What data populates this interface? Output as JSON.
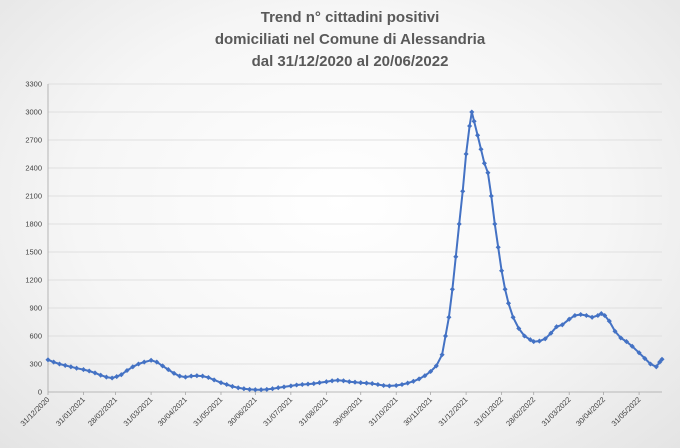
{
  "chart_data": {
    "type": "line",
    "title": [
      "Trend n° cittadini positivi",
      "domiciliati nel Comune di Alessandria",
      "dal 31/12/2020 al 20/06/2022"
    ],
    "xlabel": "",
    "ylabel": "",
    "ylim": [
      0,
      3300
    ],
    "yticks": [
      0,
      300,
      600,
      900,
      1200,
      1500,
      1800,
      2100,
      2400,
      2700,
      3000,
      3300
    ],
    "x_range": [
      "2020-12-31",
      "2022-06-20"
    ],
    "xtick_labels": [
      {
        "date": "2020-12-31",
        "label": "31/12/2020"
      },
      {
        "date": "2021-01-31",
        "label": "31/01/2021"
      },
      {
        "date": "2021-02-28",
        "label": "28/02/2021"
      },
      {
        "date": "2021-03-31",
        "label": "31/03/2021"
      },
      {
        "date": "2021-04-30",
        "label": "30/04/2021"
      },
      {
        "date": "2021-05-31",
        "label": "31/05/2021"
      },
      {
        "date": "2021-06-30",
        "label": "30/06/2021"
      },
      {
        "date": "2021-07-31",
        "label": "31/07/2021"
      },
      {
        "date": "2021-08-31",
        "label": "31/08/2021"
      },
      {
        "date": "2021-09-30",
        "label": "30/09/2021"
      },
      {
        "date": "2021-10-31",
        "label": "31/10/2021"
      },
      {
        "date": "2021-11-30",
        "label": "30/11/2021"
      },
      {
        "date": "2021-12-31",
        "label": "31/12/2021"
      },
      {
        "date": "2022-01-31",
        "label": "31/01/2022"
      },
      {
        "date": "2022-02-28",
        "label": "28/02/2022"
      },
      {
        "date": "2022-03-31",
        "label": "31/03/2022"
      },
      {
        "date": "2022-04-30",
        "label": "30/04/2022"
      },
      {
        "date": "2022-05-31",
        "label": "31/05/2022"
      }
    ],
    "grid": true,
    "legend": "none",
    "series": [
      {
        "color": "#4472C4",
        "points": [
          [
            "2020-12-31",
            345
          ],
          [
            "2021-01-05",
            320
          ],
          [
            "2021-01-10",
            300
          ],
          [
            "2021-01-15",
            285
          ],
          [
            "2021-01-20",
            270
          ],
          [
            "2021-01-25",
            255
          ],
          [
            "2021-01-31",
            240
          ],
          [
            "2021-02-05",
            225
          ],
          [
            "2021-02-10",
            205
          ],
          [
            "2021-02-15",
            180
          ],
          [
            "2021-02-20",
            160
          ],
          [
            "2021-02-25",
            150
          ],
          [
            "2021-03-01",
            165
          ],
          [
            "2021-03-05",
            185
          ],
          [
            "2021-03-10",
            230
          ],
          [
            "2021-03-15",
            270
          ],
          [
            "2021-03-20",
            300
          ],
          [
            "2021-03-25",
            320
          ],
          [
            "2021-03-31",
            340
          ],
          [
            "2021-04-05",
            320
          ],
          [
            "2021-04-10",
            280
          ],
          [
            "2021-04-15",
            240
          ],
          [
            "2021-04-20",
            200
          ],
          [
            "2021-04-25",
            170
          ],
          [
            "2021-04-30",
            160
          ],
          [
            "2021-05-05",
            170
          ],
          [
            "2021-05-10",
            175
          ],
          [
            "2021-05-15",
            170
          ],
          [
            "2021-05-20",
            155
          ],
          [
            "2021-05-25",
            130
          ],
          [
            "2021-05-31",
            100
          ],
          [
            "2021-06-05",
            80
          ],
          [
            "2021-06-10",
            60
          ],
          [
            "2021-06-15",
            45
          ],
          [
            "2021-06-20",
            35
          ],
          [
            "2021-06-25",
            28
          ],
          [
            "2021-06-30",
            25
          ],
          [
            "2021-07-05",
            25
          ],
          [
            "2021-07-10",
            28
          ],
          [
            "2021-07-15",
            35
          ],
          [
            "2021-07-20",
            45
          ],
          [
            "2021-07-25",
            55
          ],
          [
            "2021-07-31",
            65
          ],
          [
            "2021-08-05",
            75
          ],
          [
            "2021-08-10",
            80
          ],
          [
            "2021-08-15",
            85
          ],
          [
            "2021-08-20",
            90
          ],
          [
            "2021-08-25",
            100
          ],
          [
            "2021-08-31",
            110
          ],
          [
            "2021-09-05",
            120
          ],
          [
            "2021-09-10",
            125
          ],
          [
            "2021-09-15",
            120
          ],
          [
            "2021-09-20",
            110
          ],
          [
            "2021-09-25",
            105
          ],
          [
            "2021-09-30",
            100
          ],
          [
            "2021-10-05",
            95
          ],
          [
            "2021-10-10",
            90
          ],
          [
            "2021-10-15",
            80
          ],
          [
            "2021-10-20",
            70
          ],
          [
            "2021-10-25",
            65
          ],
          [
            "2021-10-31",
            70
          ],
          [
            "2021-11-05",
            80
          ],
          [
            "2021-11-10",
            95
          ],
          [
            "2021-11-15",
            115
          ],
          [
            "2021-11-20",
            140
          ],
          [
            "2021-11-25",
            175
          ],
          [
            "2021-11-30",
            220
          ],
          [
            "2021-12-05",
            280
          ],
          [
            "2021-12-10",
            400
          ],
          [
            "2021-12-13",
            600
          ],
          [
            "2021-12-16",
            800
          ],
          [
            "2021-12-19",
            1100
          ],
          [
            "2021-12-22",
            1450
          ],
          [
            "2021-12-25",
            1800
          ],
          [
            "2021-12-28",
            2150
          ],
          [
            "2021-12-31",
            2550
          ],
          [
            "2022-01-03",
            2850
          ],
          [
            "2022-01-05",
            3000
          ],
          [
            "2022-01-07",
            2900
          ],
          [
            "2022-01-10",
            2750
          ],
          [
            "2022-01-13",
            2600
          ],
          [
            "2022-01-16",
            2450
          ],
          [
            "2022-01-19",
            2350
          ],
          [
            "2022-01-22",
            2100
          ],
          [
            "2022-01-25",
            1800
          ],
          [
            "2022-01-28",
            1550
          ],
          [
            "2022-01-31",
            1300
          ],
          [
            "2022-02-03",
            1100
          ],
          [
            "2022-02-06",
            950
          ],
          [
            "2022-02-10",
            800
          ],
          [
            "2022-02-15",
            680
          ],
          [
            "2022-02-20",
            600
          ],
          [
            "2022-02-25",
            560
          ],
          [
            "2022-02-28",
            540
          ],
          [
            "2022-03-05",
            545
          ],
          [
            "2022-03-10",
            570
          ],
          [
            "2022-03-15",
            630
          ],
          [
            "2022-03-20",
            700
          ],
          [
            "2022-03-25",
            720
          ],
          [
            "2022-03-31",
            780
          ],
          [
            "2022-04-05",
            820
          ],
          [
            "2022-04-10",
            830
          ],
          [
            "2022-04-15",
            820
          ],
          [
            "2022-04-20",
            800
          ],
          [
            "2022-04-25",
            820
          ],
          [
            "2022-04-28",
            840
          ],
          [
            "2022-05-01",
            820
          ],
          [
            "2022-05-05",
            760
          ],
          [
            "2022-05-10",
            650
          ],
          [
            "2022-05-15",
            580
          ],
          [
            "2022-05-20",
            540
          ],
          [
            "2022-05-25",
            490
          ],
          [
            "2022-05-31",
            420
          ],
          [
            "2022-06-05",
            360
          ],
          [
            "2022-06-10",
            300
          ],
          [
            "2022-06-15",
            270
          ],
          [
            "2022-06-18",
            320
          ],
          [
            "2022-06-20",
            350
          ]
        ]
      }
    ]
  }
}
